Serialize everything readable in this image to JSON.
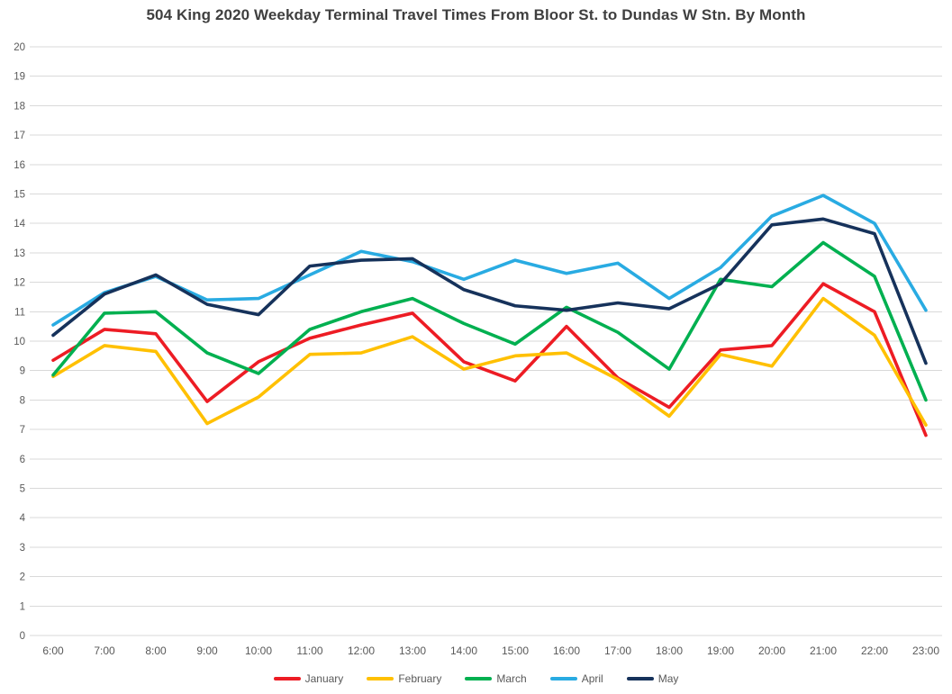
{
  "title": "504 King 2020 Weekday Terminal Travel Times From Bloor St. to Dundas W Stn. By Month",
  "chart_data": {
    "type": "line",
    "x": [
      "6:00",
      "7:00",
      "8:00",
      "9:00",
      "10:00",
      "11:00",
      "12:00",
      "13:00",
      "14:00",
      "15:00",
      "16:00",
      "17:00",
      "18:00",
      "19:00",
      "20:00",
      "21:00",
      "22:00",
      "23:00"
    ],
    "xlabel": "",
    "ylabel": "",
    "ylim": [
      0,
      20
    ],
    "ytick_step": 1,
    "grid": "horizontal",
    "grid_color": "#d9d9d9",
    "axis_label_color": "#595959",
    "legend_position": "bottom",
    "series": [
      {
        "name": "January",
        "color": "#ed1c24",
        "values": [
          9.35,
          10.4,
          10.25,
          7.95,
          9.3,
          10.1,
          10.55,
          10.95,
          9.3,
          8.65,
          10.5,
          8.75,
          7.75,
          9.7,
          9.85,
          11.95,
          11.0,
          6.8
        ]
      },
      {
        "name": "February",
        "color": "#ffc000",
        "values": [
          8.8,
          9.85,
          9.65,
          7.2,
          8.1,
          9.55,
          9.6,
          10.15,
          9.05,
          9.5,
          9.6,
          8.7,
          7.45,
          9.55,
          9.15,
          11.45,
          10.2,
          7.15
        ]
      },
      {
        "name": "March",
        "color": "#00b050",
        "values": [
          8.85,
          10.95,
          11.0,
          9.6,
          8.9,
          10.4,
          11.0,
          11.45,
          10.6,
          9.9,
          11.15,
          10.3,
          9.05,
          12.1,
          11.85,
          13.35,
          12.2,
          8.0
        ]
      },
      {
        "name": "April",
        "color": "#29abe2",
        "values": [
          10.55,
          11.65,
          12.2,
          11.4,
          11.45,
          12.25,
          13.05,
          12.7,
          12.1,
          12.75,
          12.3,
          12.65,
          11.45,
          12.5,
          14.25,
          14.95,
          14.0,
          11.05
        ]
      },
      {
        "name": "May",
        "color": "#16325b",
        "values": [
          10.2,
          11.6,
          12.25,
          11.25,
          10.9,
          12.55,
          12.75,
          12.8,
          11.75,
          11.2,
          11.05,
          11.3,
          11.1,
          11.95,
          13.95,
          14.15,
          13.65,
          9.25
        ]
      }
    ]
  }
}
